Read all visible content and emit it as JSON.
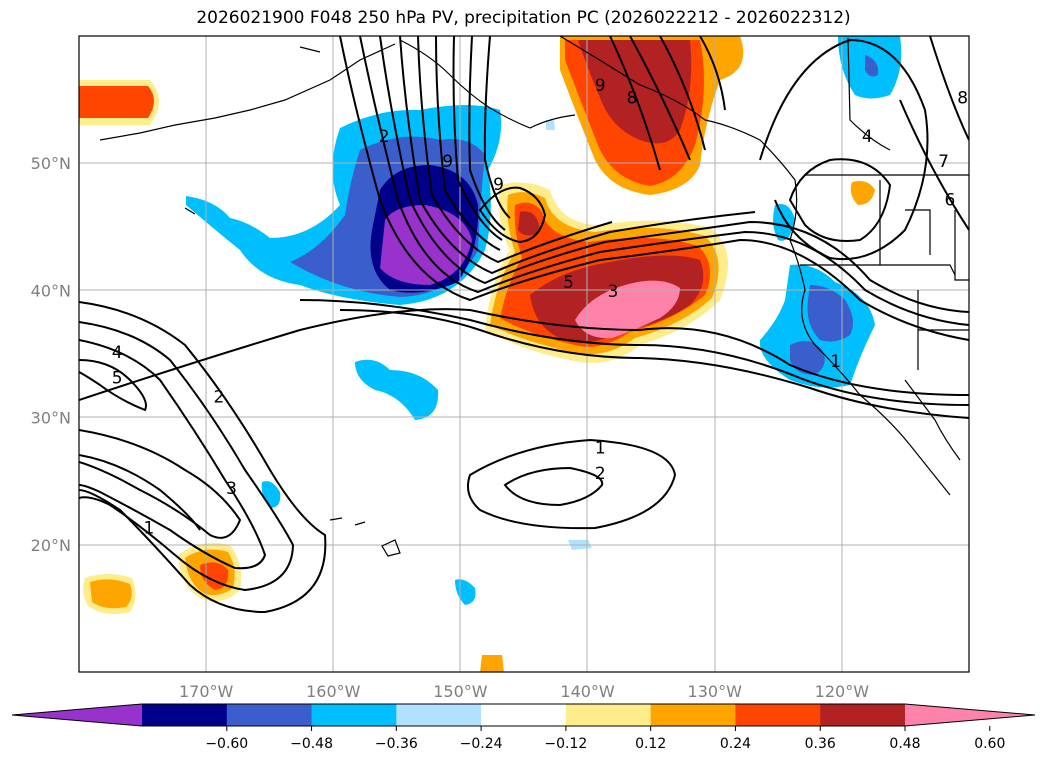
{
  "title": "2026021900 F048 250 hPa PV, precipitation PC (2026022212 - 2026022312)",
  "lat_labels": [
    {
      "text": "50°N",
      "lat": 50
    },
    {
      "text": "40°N",
      "lat": 40
    },
    {
      "text": "30°N",
      "lat": 30
    },
    {
      "text": "20°N",
      "lat": 20
    }
  ],
  "lon_labels": [
    {
      "text": "170°W",
      "lon": -170
    },
    {
      "text": "160°W",
      "lon": -160
    },
    {
      "text": "150°W",
      "lon": -150
    },
    {
      "text": "140°W",
      "lon": -140
    },
    {
      "text": "130°W",
      "lon": -130
    },
    {
      "text": "120°W",
      "lon": -120
    }
  ],
  "extent": {
    "lon_min": -180,
    "lon_max": -110,
    "lat_min": 10,
    "lat_max": 60
  },
  "colorbar": {
    "colors": [
      "#9932cc",
      "#00008b",
      "#3a5fcd",
      "#00bfff",
      "#b0e2ff",
      "#ffffff",
      "#ffec8b",
      "#ffa500",
      "#ff4500",
      "#b22222",
      "#ff82ab"
    ],
    "tick_labels": [
      "−0.60",
      "−0.48",
      "−0.36",
      "−0.24",
      "−0.12",
      "0.12",
      "0.24",
      "0.36",
      "0.48",
      "0.60"
    ],
    "extend": "both"
  },
  "contour_labels": [
    {
      "text": "1",
      "lon": -139,
      "lat": 27.5
    },
    {
      "text": "2",
      "lon": -139,
      "lat": 25.5
    },
    {
      "text": "4",
      "lon": -177,
      "lat": 35
    },
    {
      "text": "5",
      "lon": -177,
      "lat": 33
    },
    {
      "text": "2",
      "lon": -169,
      "lat": 31.5
    },
    {
      "text": "3",
      "lon": -168,
      "lat": 24.3
    },
    {
      "text": "1",
      "lon": -174.5,
      "lat": 21.2
    },
    {
      "text": "1",
      "lon": -120.5,
      "lat": 34.3
    },
    {
      "text": "5",
      "lon": -141.5,
      "lat": 40.5
    },
    {
      "text": "3",
      "lon": -138,
      "lat": 39.8
    },
    {
      "text": "9",
      "lon": -147,
      "lat": 48.2
    },
    {
      "text": "2",
      "lon": -156,
      "lat": 52
    },
    {
      "text": "9",
      "lon": -151,
      "lat": 50
    },
    {
      "text": "9",
      "lon": -139,
      "lat": 56
    },
    {
      "text": "8",
      "lon": -136.5,
      "lat": 55
    },
    {
      "text": "4",
      "lon": -118,
      "lat": 52
    },
    {
      "text": "7",
      "lon": -112,
      "lat": 50
    },
    {
      "text": "6",
      "lon": -111.5,
      "lat": 47
    },
    {
      "text": "8",
      "lon": -110.5,
      "lat": 55
    }
  ]
}
